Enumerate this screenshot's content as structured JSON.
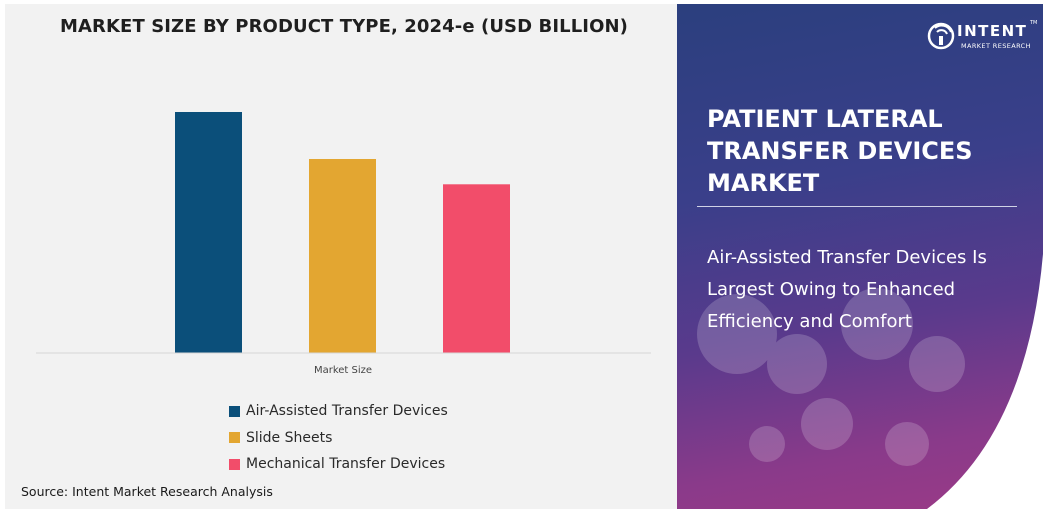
{
  "chart_data": {
    "type": "bar",
    "title": "MARKET SIZE BY PRODUCT TYPE, 2024-e (USD BILLION)",
    "xlabel": "Market Size",
    "ylabel": "",
    "categories": [
      "Market Size"
    ],
    "series": [
      {
        "name": "Air-Assisted Transfer Devices",
        "values": [
          100
        ],
        "color": "#0b4f7a"
      },
      {
        "name": "Slide Sheets",
        "values": [
          80.5
        ],
        "color": "#e3a631"
      },
      {
        "name": "Mechanical Transfer Devices",
        "values": [
          70
        ],
        "color": "#f24d6a"
      }
    ],
    "ylim": [
      0,
      100
    ],
    "grid": false,
    "legend_position": "bottom"
  },
  "source": "Source: Intent Market Research Analysis",
  "right_panel": {
    "logo": {
      "line1": "INTENT",
      "line2": "MARKET RESEARCH",
      "trademark": "TM"
    },
    "title": "PATIENT LATERAL TRANSFER DEVICES MARKET",
    "highlight": "Air-Assisted Transfer Devices Is Largest Owing to Enhanced Efficiency and Comfort"
  }
}
